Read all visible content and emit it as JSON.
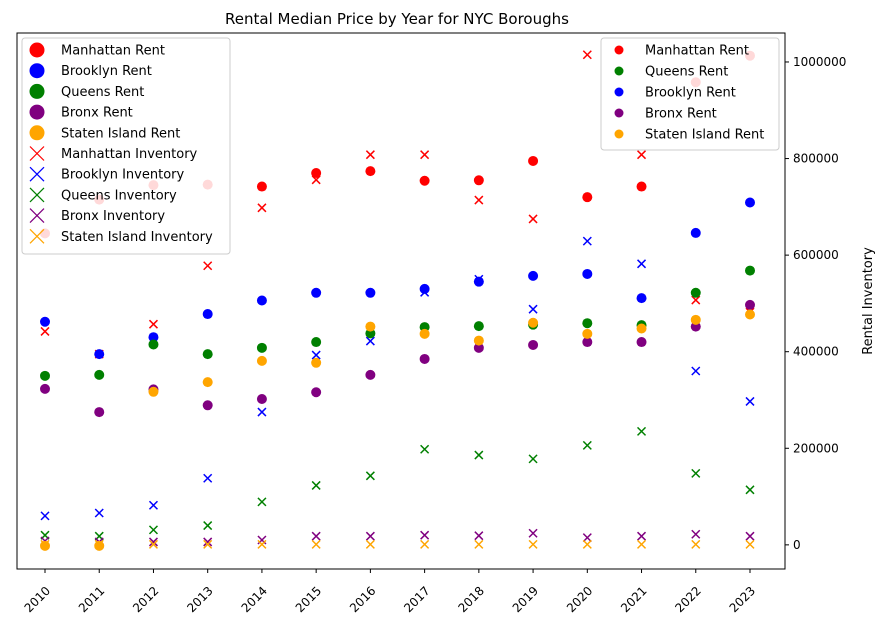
{
  "chart_data": {
    "type": "scatter",
    "title": "Rental Median Price by Year for NYC Boroughs",
    "xlabel": "",
    "ylabel": "",
    "y2label": "Rental Inventory",
    "categories": [
      "2010",
      "2011",
      "2012",
      "2013",
      "2014",
      "2015",
      "2016",
      "2017",
      "2018",
      "2019",
      "2020",
      "2021",
      "2022",
      "2023"
    ],
    "y2ticks": [
      0,
      200000,
      400000,
      600000,
      800000,
      1000000
    ],
    "y2ticklabels": [
      "0",
      "200000",
      "400000",
      "600000",
      "800000",
      "1000000"
    ],
    "y2lim": [
      -50000,
      1060000
    ],
    "rent_series": [
      {
        "name": "Manhattan Rent",
        "color": "#ff0000",
        "values": [
          645000,
          715000,
          745000,
          746000,
          742000,
          770000,
          774000,
          754000,
          755000,
          795000,
          720000,
          742000,
          958000,
          1013000
        ]
      },
      {
        "name": "Brooklyn Rent",
        "color": "#0000ff",
        "values": [
          462000,
          395000,
          430000,
          478000,
          506000,
          522000,
          522000,
          530000,
          545000,
          557000,
          561000,
          511000,
          646000,
          709000
        ]
      },
      {
        "name": "Queens Rent",
        "color": "#008000",
        "values": [
          350000,
          352000,
          415000,
          395000,
          408000,
          420000,
          438000,
          451000,
          453000,
          456000,
          459000,
          455000,
          522000,
          568000
        ]
      },
      {
        "name": "Bronx Rent",
        "color": "#800080",
        "values": [
          323000,
          275000,
          322000,
          289000,
          302000,
          316000,
          352000,
          385000,
          408000,
          414000,
          420000,
          420000,
          452000,
          497000
        ]
      },
      {
        "name": "Staten Island Rent",
        "color": "#ffa500",
        "values": [
          -2000,
          -2000,
          317000,
          337000,
          381000,
          377000,
          452000,
          437000,
          423000,
          460000,
          437000,
          448000,
          466000,
          477000
        ]
      }
    ],
    "inventory_series": [
      {
        "name": "Manhattan Inventory",
        "color": "#ff0000",
        "values": [
          442000,
          395000,
          457000,
          578000,
          698000,
          756000,
          808000,
          808000,
          714000,
          675000,
          1015000,
          808000,
          507000,
          482000
        ]
      },
      {
        "name": "Brooklyn Inventory",
        "color": "#0000ff",
        "values": [
          60000,
          66000,
          82000,
          138000,
          275000,
          393000,
          422000,
          523000,
          550000,
          488000,
          629000,
          582000,
          360000,
          297000
        ]
      },
      {
        "name": "Queens Inventory",
        "color": "#008000",
        "values": [
          20000,
          18000,
          31000,
          40000,
          89000,
          123000,
          143000,
          198000,
          186000,
          178000,
          206000,
          235000,
          148000,
          114000
        ]
      },
      {
        "name": "Bronx Inventory",
        "color": "#800080",
        "values": [
          8000,
          6000,
          6000,
          6000,
          10000,
          18000,
          18000,
          20000,
          19000,
          24000,
          15000,
          18000,
          22000,
          18000
        ]
      },
      {
        "name": "Staten Island Inventory",
        "color": "#ffa500",
        "values": [
          1000,
          1000,
          1000,
          1000,
          1000,
          1000,
          1000,
          1000,
          1000,
          1000,
          1000,
          1000,
          1000,
          1000
        ]
      }
    ],
    "left_legend_placement": "upper-left",
    "right_legend_placement": "upper-right",
    "right_legend_entries": [
      "Manhattan Rent",
      "Queens Rent",
      "Brooklyn Rent",
      "Bronx Rent",
      "Staten Island Rent"
    ],
    "grid": false
  }
}
